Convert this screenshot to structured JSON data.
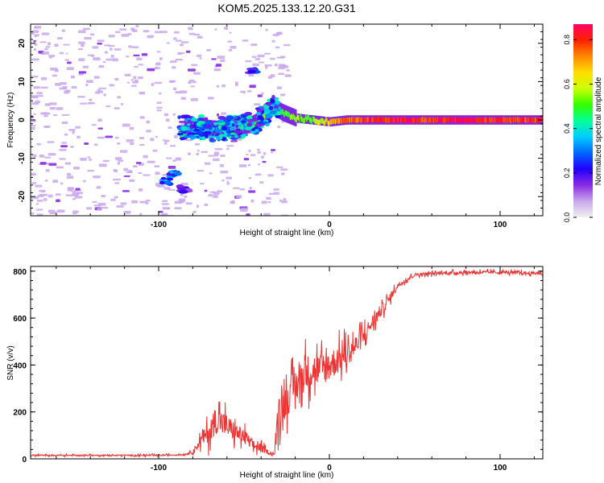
{
  "title": "KOM5.2025.133.12.20.G31",
  "colors": {
    "snr_line": "#ee3333",
    "scatter_dots": "#c8a8ec",
    "colormap": [
      "#f0f0f0",
      "#c8a8ec",
      "#8a2be2",
      "#2200ff",
      "#0066ff",
      "#00ccff",
      "#00ff99",
      "#33ff00",
      "#ccff00",
      "#ffdd00",
      "#ff8800",
      "#ff2200",
      "#ff0066"
    ]
  },
  "chart_data": [
    {
      "type": "heatmap",
      "id": "spectrogram",
      "xlabel": "Height of straight line (km)",
      "ylabel": "Frequency (Hz)",
      "xlim": [
        -175,
        125
      ],
      "ylim": [
        -25,
        25
      ],
      "xticks": [
        -100,
        0,
        100
      ],
      "yticks": [
        -20,
        -10,
        0,
        10,
        20
      ],
      "colorbar": {
        "label": "Normalized spectral amplitude",
        "range": [
          0,
          0.87
        ],
        "ticks": [
          0.0,
          0.2,
          0.4,
          0.6,
          0.8
        ]
      },
      "ridge": {
        "x": [
          -85,
          -75,
          -65,
          -55,
          -45,
          -38,
          -33,
          -28,
          -20,
          -10,
          0,
          10,
          20,
          40,
          60,
          80,
          100,
          125
        ],
        "freq": [
          -2,
          -2,
          -2.5,
          -2,
          -1,
          1,
          3.5,
          2,
          0.5,
          0,
          -0.5,
          0,
          0,
          0,
          0,
          0,
          0,
          0
        ],
        "amplitude": [
          0.3,
          0.3,
          0.32,
          0.35,
          0.45,
          0.5,
          0.5,
          0.45,
          0.55,
          0.55,
          0.65,
          0.75,
          0.8,
          0.82,
          0.8,
          0.85,
          0.78,
          0.8
        ]
      },
      "features": [
        {
          "x": -45,
          "freq": 13,
          "amplitude": 0.25
        },
        {
          "x": -90,
          "freq": -14,
          "amplitude": 0.3
        },
        {
          "x": -95,
          "freq": -16,
          "amplitude": 0.3
        },
        {
          "x": -85,
          "freq": -18,
          "amplitude": 0.2
        }
      ]
    },
    {
      "type": "line",
      "id": "snr",
      "xlabel": "Height of straight line (km)",
      "ylabel": "SNR (v/v)",
      "xlim": [
        -175,
        125
      ],
      "ylim": [
        0,
        820
      ],
      "xticks": [
        -100,
        0,
        100
      ],
      "yticks": [
        0,
        200,
        400,
        600,
        800
      ],
      "series": [
        {
          "x": [
            -175,
            -150,
            -120,
            -100,
            -85,
            -80,
            -75,
            -70,
            -66,
            -62,
            -58,
            -54,
            -50,
            -45,
            -40,
            -35,
            -32,
            -30,
            -28,
            -26,
            -24,
            -20,
            -15,
            -10,
            -5,
            0,
            5,
            10,
            15,
            20,
            25,
            30,
            35,
            40,
            50,
            60,
            80,
            100,
            125
          ],
          "base": [
            15,
            15,
            15,
            15,
            18,
            30,
            80,
            120,
            170,
            150,
            130,
            110,
            95,
            60,
            45,
            25,
            20,
            200,
            250,
            230,
            260,
            310,
            360,
            380,
            380,
            400,
            420,
            450,
            480,
            520,
            580,
            630,
            680,
            740,
            785,
            790,
            795,
            795,
            790
          ],
          "noise": [
            6,
            6,
            6,
            6,
            6,
            15,
            60,
            110,
            130,
            120,
            100,
            80,
            70,
            50,
            40,
            15,
            10,
            180,
            160,
            150,
            150,
            160,
            170,
            160,
            150,
            150,
            130,
            120,
            100,
            90,
            70,
            60,
            40,
            25,
            15,
            15,
            15,
            15,
            15
          ]
        }
      ]
    }
  ]
}
